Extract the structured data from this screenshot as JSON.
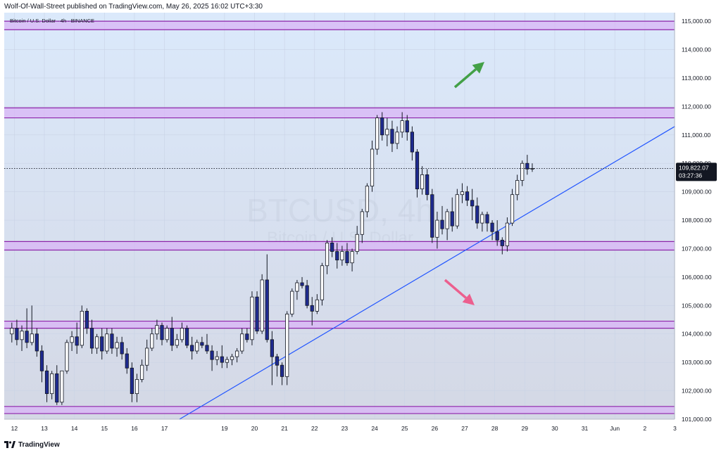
{
  "header": {
    "publisher_line": "Wolf-Of-Wall-Street published on TradingView.com, May 26, 2025 16:02 UTC+3:30"
  },
  "footer": {
    "brand": "TradingView",
    "logo_icon": "tradingview-logo-icon"
  },
  "colors": {
    "up_candle_fill": "#ffffff",
    "down_candle_fill": "#1e2a8f",
    "candle_border": "#131722",
    "zone_fill": "#d8b4f5",
    "zone_border": "#8e24aa",
    "trendline": "#2155ff",
    "arrow_up": "#43a047",
    "arrow_down": "#ec5f8e",
    "price_label_bg": "#131722",
    "background_top": "#dbe9fb",
    "background_bottom": "#d4d8e5"
  },
  "chart_data": {
    "type": "candlestick",
    "symbol_line": "Bitcoin / U.S. Dollar · 4h · BINANCE",
    "watermark": {
      "symbol": "BTCUSD, 4h",
      "name": "Bitcoin / U.S. Dollar"
    },
    "y_axis": {
      "range": [
        101000,
        115300
      ],
      "tick_labels": [
        "115,000.00",
        "114,000.00",
        "113,000.00",
        "112,000.00",
        "111,000.00",
        "110,000.00",
        "109,000.00",
        "108,000.00",
        "107,000.00",
        "106,000.00",
        "105,000.00",
        "104,000.00",
        "103,000.00",
        "102,000.00",
        "101,000.00"
      ],
      "tick_values": [
        115000,
        114000,
        113000,
        112000,
        111000,
        110000,
        109000,
        108000,
        107000,
        106000,
        105000,
        104000,
        103000,
        102000,
        101000
      ]
    },
    "x_axis": {
      "tick_labels": [
        "12",
        "13",
        "14",
        "15",
        "16",
        "17",
        "19",
        "20",
        "21",
        "22",
        "23",
        "24",
        "25",
        "26",
        "27",
        "28",
        "29",
        "30",
        "31",
        "Jun",
        "2",
        "3"
      ],
      "tick_dates": [
        "2025-05-12",
        "2025-05-13",
        "2025-05-14",
        "2025-05-15",
        "2025-05-16",
        "2025-05-17",
        "2025-05-19",
        "2025-05-20",
        "2025-05-21",
        "2025-05-22",
        "2025-05-23",
        "2025-05-24",
        "2025-05-25",
        "2025-05-26",
        "2025-05-27",
        "2025-05-28",
        "2025-05-29",
        "2025-05-30",
        "2025-05-31",
        "2025-06-01",
        "2025-06-02",
        "2025-06-03"
      ]
    },
    "candle_interval": "4h",
    "first_candle": "2025-05-11 20:00",
    "candles_ohlc": [
      [
        104000,
        104400,
        103700,
        104200
      ],
      [
        104200,
        104500,
        103600,
        103800
      ],
      [
        103800,
        104300,
        103400,
        104100
      ],
      [
        104100,
        104900,
        103500,
        103700
      ],
      [
        103700,
        105000,
        103600,
        104000
      ],
      [
        104000,
        104200,
        103200,
        103400
      ],
      [
        103400,
        103600,
        102300,
        102700
      ],
      [
        102700,
        102900,
        101600,
        101900
      ],
      [
        101900,
        102700,
        101700,
        102600
      ],
      [
        102600,
        102900,
        101500,
        101600
      ],
      [
        101600,
        102700,
        101500,
        102700
      ],
      [
        102700,
        103800,
        102600,
        103700
      ],
      [
        103700,
        104100,
        103400,
        103900
      ],
      [
        103900,
        104400,
        103300,
        103600
      ],
      [
        103600,
        105000,
        103500,
        104800
      ],
      [
        104800,
        104900,
        104000,
        104200
      ],
      [
        104200,
        104500,
        103300,
        103500
      ],
      [
        103500,
        104000,
        103300,
        103900
      ],
      [
        103900,
        104200,
        103100,
        103400
      ],
      [
        103400,
        104200,
        103300,
        104000
      ],
      [
        104000,
        104200,
        103300,
        103500
      ],
      [
        103500,
        103900,
        103200,
        103700
      ],
      [
        103700,
        103900,
        103100,
        103300
      ],
      [
        103300,
        103500,
        102600,
        102800
      ],
      [
        102800,
        103000,
        101600,
        101900
      ],
      [
        101900,
        102600,
        101600,
        102400
      ],
      [
        102400,
        103100,
        102300,
        102900
      ],
      [
        102900,
        103800,
        102700,
        103500
      ],
      [
        103500,
        104200,
        103400,
        104000
      ],
      [
        104000,
        104500,
        103800,
        104300
      ],
      [
        104300,
        104400,
        103600,
        103800
      ],
      [
        103800,
        104300,
        103700,
        104200
      ],
      [
        104200,
        104600,
        103400,
        103600
      ],
      [
        103600,
        104000,
        103500,
        103800
      ],
      [
        103800,
        104400,
        103700,
        104200
      ],
      [
        104200,
        104300,
        103500,
        103600
      ],
      [
        103600,
        103900,
        103100,
        103400
      ],
      [
        103400,
        103800,
        103300,
        103700
      ],
      [
        103700,
        103900,
        103500,
        103600
      ],
      [
        103600,
        104000,
        103300,
        103400
      ],
      [
        103400,
        103600,
        102700,
        103100
      ],
      [
        103100,
        103400,
        102900,
        103200
      ],
      [
        103200,
        103600,
        102800,
        103000
      ],
      [
        103000,
        103200,
        102800,
        103100
      ],
      [
        103100,
        103300,
        102900,
        103200
      ],
      [
        103200,
        103500,
        103000,
        103400
      ],
      [
        103400,
        104200,
        103300,
        104000
      ],
      [
        104000,
        104200,
        103700,
        103800
      ],
      [
        103800,
        105500,
        103600,
        105300
      ],
      [
        105300,
        105500,
        104000,
        104100
      ],
      [
        104100,
        106100,
        104000,
        105900
      ],
      [
        105900,
        106800,
        103700,
        103800
      ],
      [
        103800,
        104100,
        102200,
        103200
      ],
      [
        103200,
        103300,
        102500,
        102900
      ],
      [
        102900,
        103000,
        102200,
        102500
      ],
      [
        102500,
        104800,
        102200,
        104700
      ],
      [
        104700,
        105600,
        104600,
        105500
      ],
      [
        105500,
        105900,
        105200,
        105800
      ],
      [
        105800,
        106000,
        105600,
        105700
      ],
      [
        105700,
        105900,
        104900,
        105000
      ],
      [
        105000,
        105300,
        104300,
        104800
      ],
      [
        104800,
        105400,
        104700,
        105200
      ],
      [
        105200,
        106500,
        105000,
        106400
      ],
      [
        106400,
        107300,
        106100,
        107200
      ],
      [
        107200,
        107400,
        106700,
        106900
      ],
      [
        106900,
        107200,
        106300,
        106600
      ],
      [
        106600,
        107100,
        106400,
        106900
      ],
      [
        106900,
        107200,
        106400,
        106500
      ],
      [
        106500,
        107000,
        106200,
        106900
      ],
      [
        106900,
        107800,
        106800,
        107500
      ],
      [
        107500,
        108400,
        107200,
        108300
      ],
      [
        108300,
        109300,
        108100,
        109200
      ],
      [
        109200,
        110800,
        109000,
        110500
      ],
      [
        110500,
        111700,
        110300,
        111600
      ],
      [
        111600,
        111800,
        110800,
        111000
      ],
      [
        111000,
        111600,
        110600,
        111200
      ],
      [
        111200,
        111500,
        110400,
        110700
      ],
      [
        110700,
        111300,
        110500,
        111100
      ],
      [
        111100,
        111800,
        110900,
        111500
      ],
      [
        111500,
        111700,
        110800,
        111100
      ],
      [
        111100,
        111300,
        110100,
        110400
      ],
      [
        110400,
        110500,
        108800,
        109100
      ],
      [
        109100,
        109900,
        108900,
        109600
      ],
      [
        109600,
        109800,
        108700,
        108900
      ],
      [
        108900,
        109100,
        107200,
        107400
      ],
      [
        107400,
        108300,
        107000,
        108000
      ],
      [
        108000,
        108500,
        107500,
        107700
      ],
      [
        107700,
        108400,
        107300,
        108300
      ],
      [
        108300,
        108800,
        107600,
        107800
      ],
      [
        107800,
        109100,
        107700,
        108900
      ],
      [
        108900,
        109300,
        108600,
        109000
      ],
      [
        109000,
        109200,
        108500,
        108700
      ],
      [
        108700,
        109100,
        108000,
        108500
      ],
      [
        108500,
        108800,
        107700,
        107900
      ],
      [
        107900,
        108300,
        107600,
        108200
      ],
      [
        108200,
        108300,
        107600,
        107900
      ],
      [
        107900,
        108000,
        107300,
        107600
      ],
      [
        107600,
        108000,
        107100,
        107300
      ],
      [
        107300,
        107400,
        106800,
        107100
      ],
      [
        107100,
        108100,
        106900,
        107900
      ],
      [
        107900,
        109100,
        107800,
        108900
      ],
      [
        108900,
        109600,
        108700,
        109400
      ],
      [
        109400,
        110100,
        109200,
        110000
      ],
      [
        110000,
        110300,
        109600,
        109800
      ],
      [
        109800,
        110000,
        109700,
        109822
      ]
    ],
    "current_price": {
      "value": "109,822.07",
      "countdown": "03:27:36",
      "price": 109822.07
    },
    "zones": [
      {
        "from": 114700,
        "to": 115000
      },
      {
        "from": 111600,
        "to": 111950
      },
      {
        "from": 106950,
        "to": 107250
      },
      {
        "from": 104200,
        "to": 104450
      },
      {
        "from": 101200,
        "to": 101450
      }
    ],
    "trendline": {
      "from": [
        "2025-05-17 12:00",
        101000
      ],
      "to": [
        "2025-06-03 00:00",
        111300
      ]
    },
    "annotations": [
      {
        "type": "arrow",
        "direction": "up",
        "color": "#43a047"
      },
      {
        "type": "arrow",
        "direction": "down",
        "color": "#ec5f8e"
      }
    ],
    "grid": true,
    "xlabel": "",
    "ylabel": ""
  }
}
